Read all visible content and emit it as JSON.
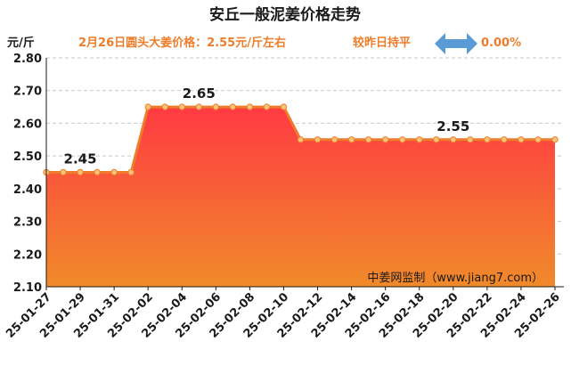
{
  "header": {
    "title": "安丘一般泥姜价格走势",
    "unit": "元/斤",
    "price_note": "2月26日圆头大姜价格：2.55元/斤左右",
    "compare_label": "较昨日持平",
    "change_pct": "0.00%",
    "arrow_icon": "double-arrow-icon"
  },
  "watermark": "中姜网监制（www.jiang7.com）",
  "colors": {
    "area_top": "#ff3a43",
    "area_bottom": "#f08a2a",
    "line": "#ee7d2b",
    "marker_fill": "#f4c27a",
    "arrow": "#5b9bd5",
    "accent_text": "#ee7d2b"
  },
  "chart_data": {
    "type": "area",
    "title": "安丘一般泥姜价格走势",
    "ylabel": "元/斤",
    "ylim": [
      2.1,
      2.8
    ],
    "yticks": [
      "2.10",
      "2.20",
      "2.30",
      "2.40",
      "2.50",
      "2.60",
      "2.70",
      "2.80"
    ],
    "grid": true,
    "x": [
      "25-01-27",
      "25-01-28",
      "25-01-29",
      "25-01-30",
      "25-01-31",
      "25-02-01",
      "25-02-02",
      "25-02-03",
      "25-02-04",
      "25-02-05",
      "25-02-06",
      "25-02-07",
      "25-02-08",
      "25-02-09",
      "25-02-10",
      "25-02-11",
      "25-02-12",
      "25-02-13",
      "25-02-14",
      "25-02-15",
      "25-02-16",
      "25-02-17",
      "25-02-18",
      "25-02-19",
      "25-02-20",
      "25-02-21",
      "25-02-22",
      "25-02-23",
      "25-02-24",
      "25-02-25",
      "25-02-26"
    ],
    "xtick_labels": [
      "25-01-27",
      "25-01-29",
      "25-01-31",
      "25-02-02",
      "25-02-04",
      "25-02-06",
      "25-02-08",
      "25-02-10",
      "25-02-12",
      "25-02-14",
      "25-02-16",
      "25-02-18",
      "25-02-20",
      "25-02-22",
      "25-02-24",
      "25-02-26"
    ],
    "series": [
      {
        "values": [
          2.45,
          2.45,
          2.45,
          2.45,
          2.45,
          2.45,
          2.65,
          2.65,
          2.65,
          2.65,
          2.65,
          2.65,
          2.65,
          2.65,
          2.65,
          2.55,
          2.55,
          2.55,
          2.55,
          2.55,
          2.55,
          2.55,
          2.55,
          2.55,
          2.55,
          2.55,
          2.55,
          2.55,
          2.55,
          2.55,
          2.55
        ]
      }
    ],
    "data_labels": [
      {
        "x": "25-01-29",
        "text": "2.45"
      },
      {
        "x": "25-02-05",
        "text": "2.65"
      },
      {
        "x": "25-02-20",
        "text": "2.55"
      }
    ]
  }
}
